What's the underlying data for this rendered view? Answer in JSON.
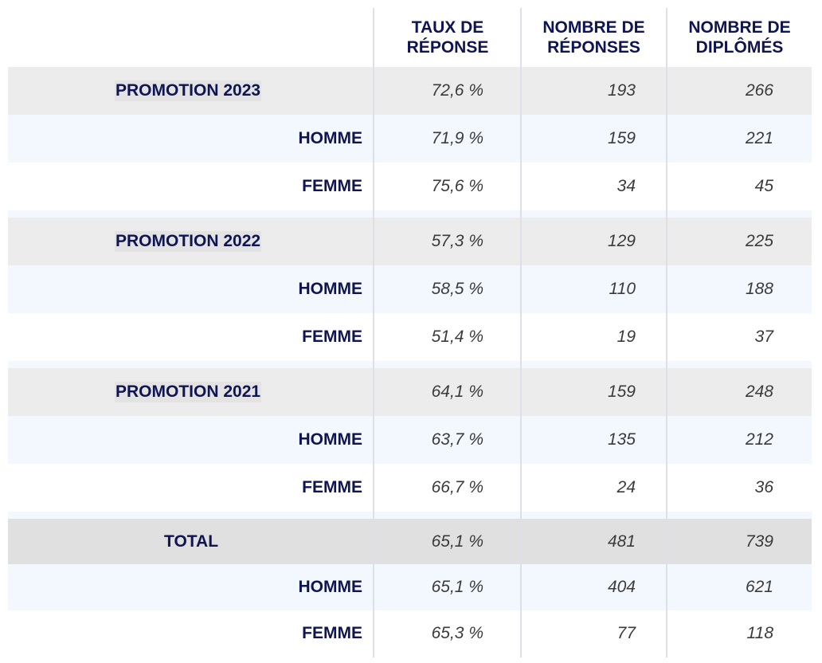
{
  "columns": {
    "rate": "TAUX DE\nRÉPONSE",
    "responses": "NOMBRE DE\nRÉPONSES",
    "graduates": "NOMBRE DE\nDIPLÔMÉS"
  },
  "rows": [
    {
      "label": "PROMOTION 2023",
      "rate": "72,6 %",
      "responses": "193",
      "graduates": "266"
    },
    {
      "label": "HOMME",
      "rate": "71,9 %",
      "responses": "159",
      "graduates": "221"
    },
    {
      "label": "FEMME",
      "rate": "75,6 %",
      "responses": "34",
      "graduates": "45"
    },
    {
      "label": "PROMOTION 2022",
      "rate": "57,3 %",
      "responses": "129",
      "graduates": "225"
    },
    {
      "label": "HOMME",
      "rate": "58,5 %",
      "responses": "110",
      "graduates": "188"
    },
    {
      "label": "FEMME",
      "rate": "51,4 %",
      "responses": "19",
      "graduates": "37"
    },
    {
      "label": "PROMOTION 2021",
      "rate": "64,1 %",
      "responses": "159",
      "graduates": "248"
    },
    {
      "label": "HOMME",
      "rate": "63,7 %",
      "responses": "135",
      "graduates": "212"
    },
    {
      "label": "FEMME",
      "rate": "66,7 %",
      "responses": "24",
      "graduates": "36"
    },
    {
      "label": "TOTAL",
      "rate": "65,1 %",
      "responses": "481",
      "graduates": "739"
    },
    {
      "label": "HOMME",
      "rate": "65,1 %",
      "responses": "404",
      "graduates": "621"
    },
    {
      "label": "FEMME",
      "rate": "65,3 %",
      "responses": "77",
      "graduates": "118"
    }
  ]
}
